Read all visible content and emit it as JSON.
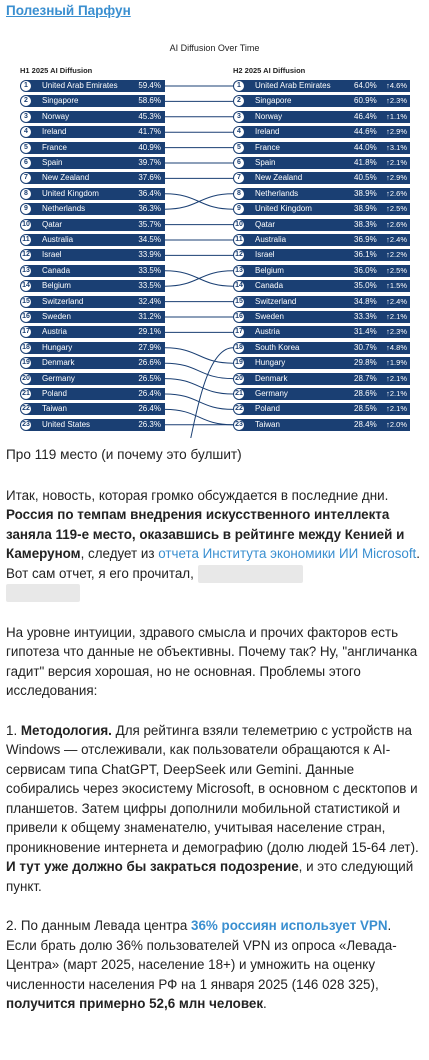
{
  "channel_name": "Полезный Парфун",
  "chart_data": {
    "type": "table",
    "title": "AI Diffusion Over Time",
    "left_header": "H1 2025 AI Diffusion",
    "right_header": "H2 2025 AI Diffusion",
    "left": [
      {
        "rank": "1",
        "country": "United Arab Emirates",
        "value": "59.4%"
      },
      {
        "rank": "2",
        "country": "Singapore",
        "value": "58.6%"
      },
      {
        "rank": "3",
        "country": "Norway",
        "value": "45.3%"
      },
      {
        "rank": "4",
        "country": "Ireland",
        "value": "41.7%"
      },
      {
        "rank": "5",
        "country": "France",
        "value": "40.9%"
      },
      {
        "rank": "6",
        "country": "Spain",
        "value": "39.7%"
      },
      {
        "rank": "7",
        "country": "New Zealand",
        "value": "37.6%"
      },
      {
        "rank": "8",
        "country": "United Kingdom",
        "value": "36.4%"
      },
      {
        "rank": "9",
        "country": "Netherlands",
        "value": "36.3%"
      },
      {
        "rank": "10",
        "country": "Qatar",
        "value": "35.7%"
      },
      {
        "rank": "11",
        "country": "Australia",
        "value": "34.5%"
      },
      {
        "rank": "12",
        "country": "Israel",
        "value": "33.9%"
      },
      {
        "rank": "13",
        "country": "Canada",
        "value": "33.5%"
      },
      {
        "rank": "14",
        "country": "Belgium",
        "value": "33.5%"
      },
      {
        "rank": "15",
        "country": "Switzerland",
        "value": "32.4%"
      },
      {
        "rank": "16",
        "country": "Sweden",
        "value": "31.2%"
      },
      {
        "rank": "17",
        "country": "Austria",
        "value": "29.1%"
      },
      {
        "rank": "18",
        "country": "Hungary",
        "value": "27.9%"
      },
      {
        "rank": "19",
        "country": "Denmark",
        "value": "26.6%"
      },
      {
        "rank": "20",
        "country": "Germany",
        "value": "26.5%"
      },
      {
        "rank": "21",
        "country": "Poland",
        "value": "26.4%"
      },
      {
        "rank": "22",
        "country": "Taiwan",
        "value": "26.4%"
      },
      {
        "rank": "23",
        "country": "United States",
        "value": "26.3%"
      }
    ],
    "right": [
      {
        "rank": "1",
        "country": "United Arab Emirates",
        "value": "64.0%",
        "change": "↑4.6%"
      },
      {
        "rank": "2",
        "country": "Singapore",
        "value": "60.9%",
        "change": "↑2.3%"
      },
      {
        "rank": "3",
        "country": "Norway",
        "value": "46.4%",
        "change": "↑1.1%"
      },
      {
        "rank": "4",
        "country": "Ireland",
        "value": "44.6%",
        "change": "↑2.9%"
      },
      {
        "rank": "5",
        "country": "France",
        "value": "44.0%",
        "change": "↑3.1%"
      },
      {
        "rank": "6",
        "country": "Spain",
        "value": "41.8%",
        "change": "↑2.1%"
      },
      {
        "rank": "7",
        "country": "New Zealand",
        "value": "40.5%",
        "change": "↑2.9%"
      },
      {
        "rank": "8",
        "country": "Netherlands",
        "value": "38.9%",
        "change": "↑2.6%"
      },
      {
        "rank": "9",
        "country": "United Kingdom",
        "value": "38.9%",
        "change": "↑2.5%"
      },
      {
        "rank": "10",
        "country": "Qatar",
        "value": "38.3%",
        "change": "↑2.6%"
      },
      {
        "rank": "11",
        "country": "Australia",
        "value": "36.9%",
        "change": "↑2.4%"
      },
      {
        "rank": "12",
        "country": "Israel",
        "value": "36.1%",
        "change": "↑2.2%"
      },
      {
        "rank": "13",
        "country": "Belgium",
        "value": "36.0%",
        "change": "↑2.5%"
      },
      {
        "rank": "14",
        "country": "Canada",
        "value": "35.0%",
        "change": "↑1.5%"
      },
      {
        "rank": "15",
        "country": "Switzerland",
        "value": "34.8%",
        "change": "↑2.4%"
      },
      {
        "rank": "16",
        "country": "Sweden",
        "value": "33.3%",
        "change": "↑2.1%"
      },
      {
        "rank": "17",
        "country": "Austria",
        "value": "31.4%",
        "change": "↑2.3%"
      },
      {
        "rank": "18",
        "country": "South Korea",
        "value": "30.7%",
        "change": "↑4.8%"
      },
      {
        "rank": "19",
        "country": "Hungary",
        "value": "29.8%",
        "change": "↑1.9%"
      },
      {
        "rank": "20",
        "country": "Denmark",
        "value": "28.7%",
        "change": "↑2.1%"
      },
      {
        "rank": "21",
        "country": "Germany",
        "value": "28.6%",
        "change": "↑2.1%"
      },
      {
        "rank": "22",
        "country": "Poland",
        "value": "28.5%",
        "change": "↑2.1%"
      },
      {
        "rank": "23",
        "country": "Taiwan",
        "value": "28.4%",
        "change": "↑2.0%"
      }
    ],
    "links": [
      [
        8,
        9
      ],
      [
        9,
        8
      ],
      [
        13,
        14
      ],
      [
        14,
        13
      ],
      [
        18,
        19
      ],
      [
        19,
        20
      ],
      [
        20,
        21
      ],
      [
        21,
        22
      ],
      [
        22,
        23
      ]
    ],
    "colors": {
      "bar": "#1a3f73",
      "line": "#1a3f73"
    }
  },
  "article": {
    "heading": "Про 119 место (и почему это булшит)",
    "p1": {
      "t1": "Итак, новость, которая громко обсуждается в последние дни. ",
      "b1": "Россия по темпам внедрения искусственного интеллекта заняла 119-е место, оказавшись в рейтинге между Кенией и Камеруном",
      "t2": ", следует из ",
      "link": "отчета Института экономики ИИ Microsoft",
      "t3": ". Вот сам отчет, я его прочитал,"
    },
    "p2": "На уровне интуиции, здравого смысла и прочих факторов есть гипотеза что данные не объективны. Почему так? Ну, \"англичанка гадит\" версия хорошая, но не основная. Проблемы этого исследования:",
    "p3": {
      "num": "1. ",
      "b1": "Методология.",
      "t1": " Для рейтинга взяли телеметрию с устройств на Windows — отслеживали, как пользователи обращаются к AI-сервисам типа ChatGPT, DeepSeek или Gemini. Данные собирались через экосистему Microsoft, в основном с десктопов и планшетов. Затем цифры дополнили мобильной статистикой и привели к общему знаменателю, учитывая население стран, проникновение интернета и демографию (долю людей 15-64 лет). ",
      "b2": "И тут уже должно бы закраться подозрение",
      "t2": ", и это следующий пункт."
    },
    "p4": {
      "t1": "2. По данным Левада центра ",
      "link": "36% россиян использует VPN",
      "t2": ". Если брать долю 36% пользователей VPN из опроса «Левада-Центра» (март 2025, население 18+) и умножить на оценку численности населения РФ на 1 января 2025 (146 028 325), ",
      "b1": "получится примерно 52,6 млн человек",
      "t3": "."
    }
  }
}
